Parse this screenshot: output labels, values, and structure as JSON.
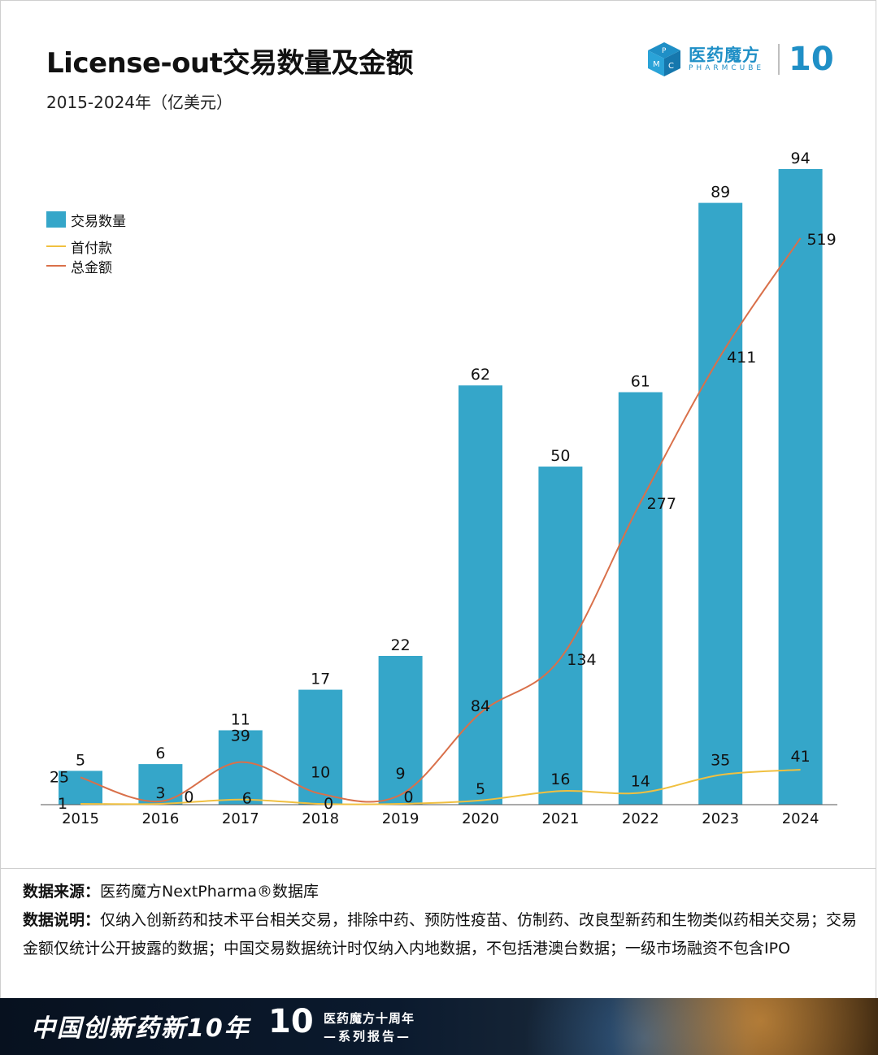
{
  "header": {
    "title": "License-out交易数量及金额",
    "subtitle": "2015-2024年（亿美元）"
  },
  "logo": {
    "name_cn": "医药魔方",
    "name_en": "PHARMCUBE",
    "badge": "10"
  },
  "colors": {
    "bar": "#35a6c9",
    "upfront_line": "#f0c040",
    "total_line": "#d9704a",
    "brand": "#1f8fc6"
  },
  "chart_data": {
    "type": "bar",
    "categories": [
      "2015",
      "2016",
      "2017",
      "2018",
      "2019",
      "2020",
      "2021",
      "2022",
      "2023",
      "2024"
    ],
    "series": [
      {
        "name": "交易数量",
        "type": "bar",
        "values": [
          5,
          6,
          11,
          17,
          22,
          62,
          50,
          61,
          89,
          94
        ]
      },
      {
        "name": "首付款",
        "type": "line",
        "values": [
          1,
          0,
          6,
          0,
          0,
          5,
          16,
          14,
          35,
          41
        ]
      },
      {
        "name": "总金额",
        "type": "line",
        "values": [
          25,
          3,
          39,
          10,
          9,
          84,
          134,
          277,
          411,
          519
        ]
      }
    ],
    "legend_position": "top-left",
    "grid": false
  },
  "notes": {
    "source_label": "数据来源：",
    "source_text": "医药魔方NextPharma®数据库",
    "desc_label": "数据说明：",
    "desc_text": "仅纳入创新药和技术平台相关交易，排除中药、预防性疫苗、仿制药、改良型新药和生物类似药相关交易；交易金额仅统计公开披露的数据；中国交易数据统计时仅纳入内地数据，不包括港澳台数据；一级市场融资不包含IPO"
  },
  "banner": {
    "title": "中国创新药新10年",
    "badge": "10",
    "line1": "医药魔方十周年",
    "line2": "—系列报告—"
  }
}
